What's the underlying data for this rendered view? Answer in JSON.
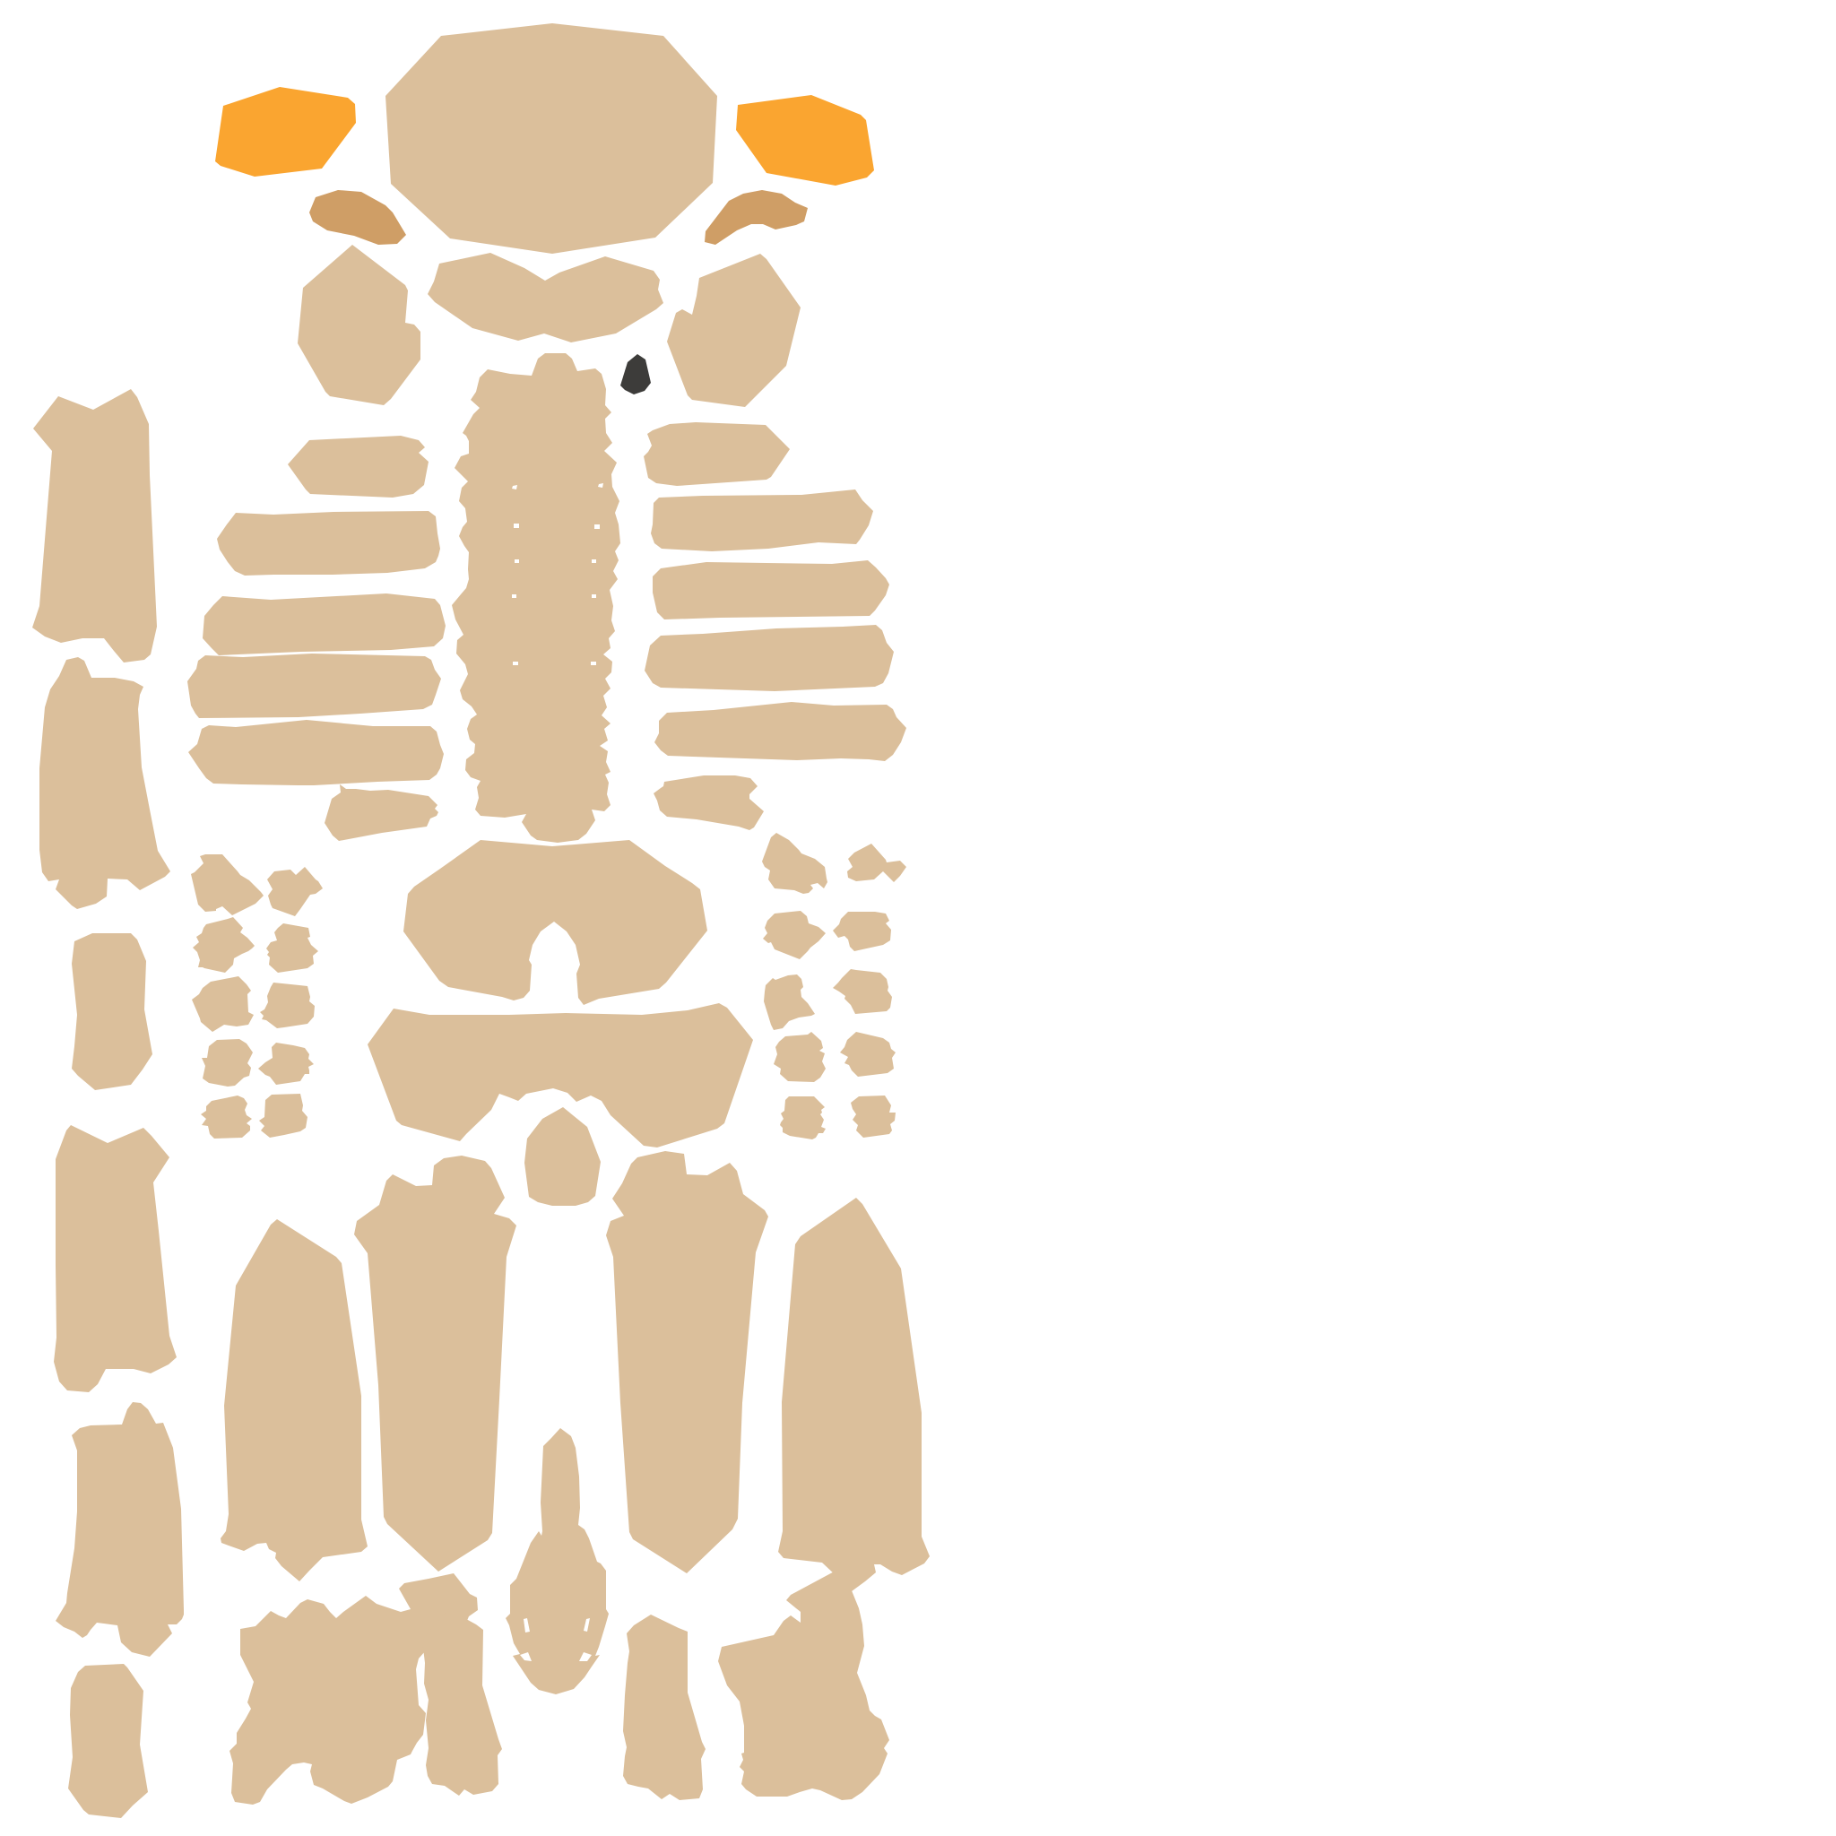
{
  "palette": {
    "background": "#ffffff",
    "bone": "#dbbf9b",
    "orange": "#faa530",
    "tan": "#cf9e66",
    "dark": "#3d3c3a"
  }
}
